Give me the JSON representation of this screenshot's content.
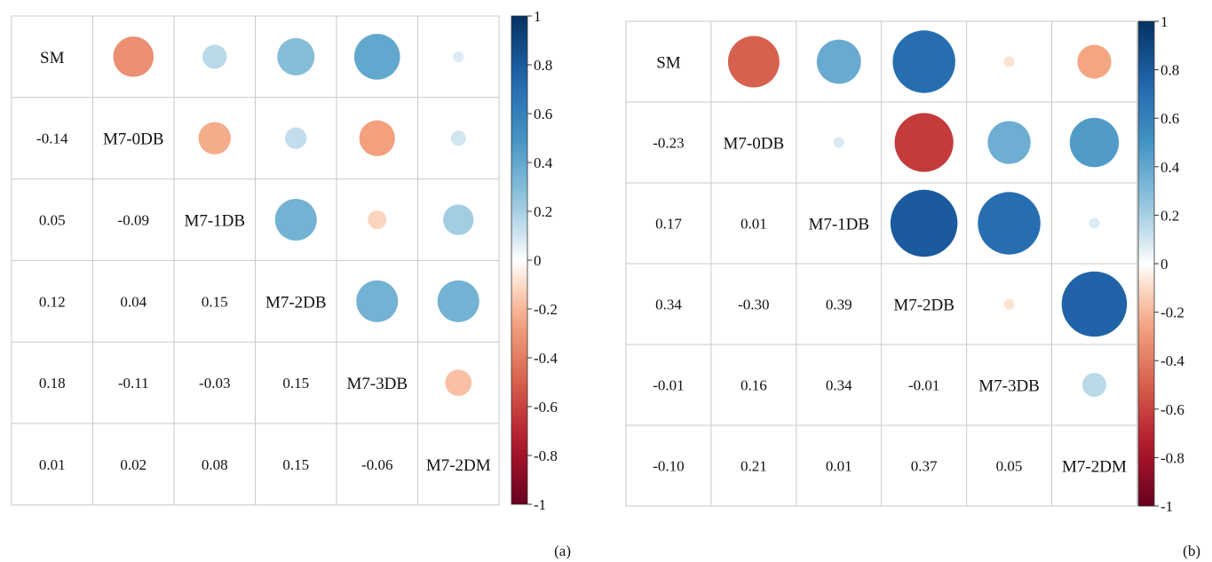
{
  "chart_data": [
    {
      "type": "heatmap",
      "panel_label": "(a)",
      "variables": [
        "SM",
        "M7-0DB",
        "M7-1DB",
        "M7-2DB",
        "M7-3DB",
        "M7-2DM"
      ],
      "matrix": [
        [
          1,
          -0.14,
          0.05,
          0.12,
          0.18,
          0.01
        ],
        [
          -0.14,
          1,
          -0.09,
          0.04,
          -0.11,
          0.02
        ],
        [
          0.05,
          -0.09,
          1,
          0.15,
          -0.03,
          0.08
        ],
        [
          0.12,
          0.04,
          0.15,
          1,
          0.15,
          0.15
        ],
        [
          0.18,
          -0.11,
          -0.03,
          0.15,
          1,
          -0.06
        ],
        [
          0.01,
          0.02,
          0.08,
          0.15,
          -0.06,
          1
        ]
      ],
      "lower_labels": [
        [
          "",
          "",
          "",
          "",
          "",
          ""
        ],
        [
          "-0.14",
          "",
          "",
          "",
          "",
          ""
        ],
        [
          "0.05",
          "-0.09",
          "",
          "",
          "",
          ""
        ],
        [
          "0.12",
          "0.04",
          "0.15",
          "",
          "",
          ""
        ],
        [
          "0.18",
          "-0.11",
          "-0.03",
          "0.15",
          "",
          ""
        ],
        [
          "0.01",
          "0.02",
          "0.08",
          "0.15",
          "-0.06",
          ""
        ]
      ],
      "colorbar": {
        "range": [
          -1,
          1
        ],
        "ticks": [
          "1",
          "0.8",
          "0.6",
          "0.4",
          "0.2",
          "0",
          "-0.2",
          "-0.4",
          "-0.6",
          "-0.8",
          "-1"
        ]
      }
    },
    {
      "type": "heatmap",
      "panel_label": "(b)",
      "variables": [
        "SM",
        "M7-0DB",
        "M7-1DB",
        "M7-2DB",
        "M7-3DB",
        "M7-2DM"
      ],
      "matrix": [
        [
          1,
          -0.23,
          0.17,
          0.34,
          -0.01,
          -0.1
        ],
        [
          -0.23,
          1,
          0.01,
          -0.3,
          0.16,
          0.21
        ],
        [
          0.17,
          0.01,
          1,
          0.39,
          0.34,
          0.01
        ],
        [
          0.34,
          -0.3,
          0.39,
          1,
          -0.01,
          0.37
        ],
        [
          -0.01,
          0.16,
          0.34,
          -0.01,
          1,
          0.05
        ],
        [
          -0.1,
          0.21,
          0.01,
          0.37,
          0.05,
          1
        ]
      ],
      "lower_labels": [
        [
          "",
          "",
          "",
          "",
          "",
          ""
        ],
        [
          "-0.23",
          "",
          "",
          "",
          "",
          ""
        ],
        [
          "0.17",
          "0.01",
          "",
          "",
          "",
          ""
        ],
        [
          "0.34",
          "-0.30",
          "0.39",
          "",
          "",
          ""
        ],
        [
          "-0.01",
          "0.16",
          "0.34",
          "-0.01",
          "",
          ""
        ],
        [
          "-0.10",
          "0.21",
          "0.01",
          "0.37",
          "0.05",
          ""
        ]
      ],
      "colorbar": {
        "range": [
          -1,
          1
        ],
        "ticks": [
          "1",
          "0.8",
          "0.6",
          "0.4",
          "0.2",
          "0",
          "-0.2",
          "-0.4",
          "-0.6",
          "-0.8",
          "-1"
        ]
      }
    }
  ]
}
